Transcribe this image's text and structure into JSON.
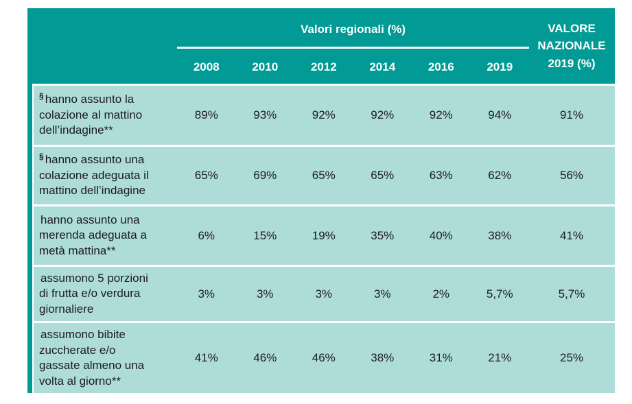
{
  "colors": {
    "header_bg": "#019a94",
    "row_bg": "#aedcd9",
    "text_dark": "#1b1b22",
    "header_text": "#ffffff"
  },
  "chart_data": {
    "type": "table",
    "group_title": "Valori regionali (%)",
    "national_header": "VALORE NAZIONALE 2019 (%)",
    "years": [
      "2008",
      "2010",
      "2012",
      "2014",
      "2016",
      "2019"
    ],
    "rows": [
      {
        "prefix": "§",
        "label": "hanno assunto la colazione al mattino dell’indagine**",
        "values": [
          "89%",
          "93%",
          "92%",
          "92%",
          "92%",
          "94%"
        ],
        "national": "91%"
      },
      {
        "prefix": "§",
        "label": "hanno assunto una colazione adeguata il mattino dell’indagine",
        "values": [
          "65%",
          "69%",
          "65%",
          "65%",
          "63%",
          "62%"
        ],
        "national": "56%"
      },
      {
        "prefix": "",
        "label": "hanno assunto una merenda adeguata a metà mattina**",
        "values": [
          "6%",
          "15%",
          "19%",
          "35%",
          "40%",
          "38%"
        ],
        "national": "41%"
      },
      {
        "prefix": "",
        "label": "assumono 5 porzioni di frutta e/o verdura giornaliere",
        "values": [
          "3%",
          "3%",
          "3%",
          "3%",
          "2%",
          "5,7%"
        ],
        "national": "5,7%"
      },
      {
        "prefix": "",
        "label": "assumono bibite zuccherate e/o gassate almeno una volta al giorno**",
        "values": [
          "41%",
          "46%",
          "46%",
          "38%",
          "31%",
          "21%"
        ],
        "national": "25%"
      }
    ]
  }
}
